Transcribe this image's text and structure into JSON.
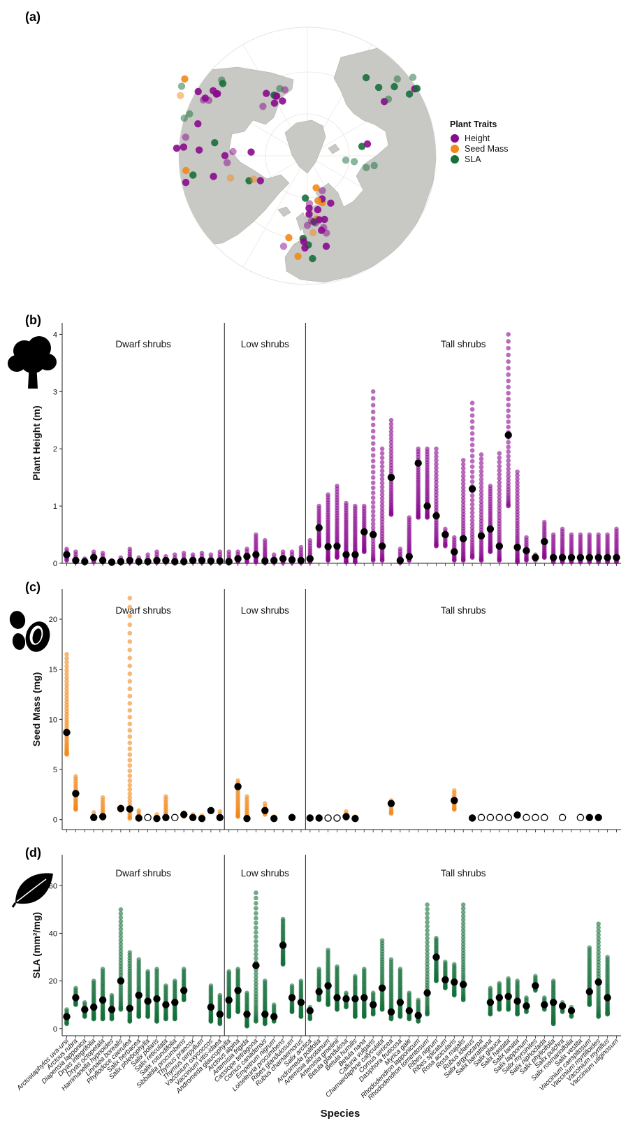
{
  "colors": {
    "height": "#8a0a8e",
    "seed": "#f0891a",
    "sla": "#16703a",
    "land": "#c8c8c4",
    "mean": "#000000"
  },
  "map": {
    "panel_label": "(a)",
    "legend_title": "Plant Traits",
    "legend": [
      "Height",
      "Seed Mass",
      "SLA"
    ]
  },
  "groups": [
    "Dwarf shrubs",
    "Low shrubs",
    "Tall shrubs"
  ],
  "x_title": "Species",
  "species": [
    "Arctostaphylos uva-ursi",
    "Arctous rubra",
    "Diapensia lapponica",
    "Dryas integrifolia",
    "Dryas octopetala",
    "Harrimanella hypnoides",
    "Linnaea borealis",
    "Phyllodoce caerulea",
    "Salix herbacea",
    "Salix phlebophylla",
    "Salix polaris",
    "Salix reticulata",
    "Salix rotundifolia",
    "Sibbaldia procumbens",
    "Thymus praecox",
    "Thymus serpyllum",
    "Vaccinium oxycoccos",
    "Vaccinium vitis-idaea",
    "Andromeda glaucophylla",
    "Arctous alpina",
    "Artemisia frigida",
    "Cassiope tetragona",
    "Cornus canadensis",
    "Empetrum nigrum",
    "Loiseleuria procumbens",
    "Ribes glandulosum",
    "Rubus chamaemorus",
    "Salix arctica",
    "Andromeda polifolia",
    "Artemisia abrotanum",
    "Artemisia gmelinii",
    "Betula glandulosa",
    "Betula humilis",
    "Betula nana",
    "Calluna vulgaris",
    "Chamaedaphne calyculata",
    "Cornus sericea",
    "Dasiphora fruticosa",
    "Myrica gale",
    "Rhododendron lapponicum",
    "Rhododendron tomentosum",
    "Ribes nigrum",
    "Ribes spicatum",
    "Rosa acicularis",
    "Rosa majalis",
    "Rubus idaeus",
    "Salix argyrocarpa",
    "Salix barrattiana",
    "Salix glauca",
    "Salix hastata",
    "Salix lanata",
    "Salix lapponum",
    "Salix myrsinites",
    "Salix niphoclada",
    "Salix phylicifolia",
    "Salix pulchra",
    "Salix rosmarinifolia",
    "Salix vestita",
    "Vaccinium caespitosum",
    "Vaccinium myrtilloides",
    "Vaccinium myrtillus",
    "Vaccinium uliginosum"
  ],
  "chart_data": [
    {
      "panel": "(b)",
      "type": "scatter",
      "ylabel": "Plant Height (m)",
      "ylim": [
        0,
        4.2
      ],
      "yticks": [
        0,
        1,
        2,
        3,
        4
      ],
      "groups": [
        "Dwarf shrubs",
        "Low shrubs",
        "Tall shrubs"
      ],
      "mean": [
        0.15,
        0.05,
        0.03,
        0.1,
        0.05,
        0.02,
        0.03,
        0.05,
        0.03,
        0.03,
        0.05,
        0.05,
        0.03,
        0.03,
        0.05,
        0.05,
        0.04,
        0.04,
        0.03,
        0.08,
        0.12,
        0.15,
        0.04,
        0.05,
        0.08,
        0.06,
        0.05,
        0.08,
        0.62,
        0.29,
        0.3,
        0.15,
        0.15,
        0.55,
        0.5,
        0.3,
        1.5,
        0.05,
        0.12,
        1.75,
        1.0,
        0.83,
        0.5,
        0.2,
        0.43,
        1.3,
        0.48,
        0.6,
        0.3,
        2.24,
        0.28,
        0.22,
        0.1,
        0.38,
        0.1,
        0.1,
        0.1,
        0.1,
        0.1,
        0.1,
        0.1,
        0.1
      ],
      "max": [
        0.25,
        0.2,
        0.08,
        0.2,
        0.18,
        0.05,
        0.1,
        0.25,
        0.1,
        0.15,
        0.2,
        0.12,
        0.15,
        0.18,
        0.15,
        0.18,
        0.15,
        0.2,
        0.2,
        0.2,
        0.25,
        0.5,
        0.4,
        0.15,
        0.2,
        0.2,
        0.28,
        0.4,
        1.0,
        1.2,
        1.35,
        1.05,
        1.0,
        1.0,
        3.0,
        2.0,
        2.5,
        0.25,
        0.8,
        2.0,
        2.0,
        2.0,
        0.6,
        0.45,
        1.8,
        2.8,
        1.9,
        1.35,
        1.92,
        4.0,
        1.6,
        0.45,
        0.15,
        0.72,
        0.5,
        0.6,
        0.5,
        0.5,
        0.5,
        0.5,
        0.5,
        0.6
      ],
      "min": [
        0.05,
        0.02,
        0.01,
        0.02,
        0.02,
        0.01,
        0.01,
        0.01,
        0.01,
        0.01,
        0.01,
        0.01,
        0.01,
        0.01,
        0.02,
        0.01,
        0.01,
        0.01,
        0.01,
        0.02,
        0.02,
        0.02,
        0.01,
        0.01,
        0.01,
        0.01,
        0.01,
        0.02,
        0.3,
        0.05,
        0.1,
        0.02,
        0.02,
        0.2,
        0.05,
        0.05,
        0.85,
        0.01,
        0.05,
        0.8,
        0.8,
        0.3,
        0.3,
        0.05,
        0.05,
        0.1,
        0.05,
        0.2,
        0.05,
        1.0,
        0.02,
        0.05,
        0.05,
        0.1,
        0.02,
        0.02,
        0.02,
        0.02,
        0.02,
        0.02,
        0.02,
        0.02
      ]
    },
    {
      "panel": "(c)",
      "type": "scatter",
      "ylabel": "Seed Mass (mg)",
      "ylim": [
        -1,
        23
      ],
      "yticks": [
        0,
        5,
        10,
        15,
        20
      ],
      "groups": [
        "Dwarf shrubs",
        "Low shrubs",
        "Tall shrubs"
      ],
      "mean": [
        8.7,
        2.6,
        null,
        0.2,
        0.3,
        null,
        1.1,
        1.05,
        0.15,
        0.2,
        0.1,
        0.2,
        0.2,
        0.5,
        0.2,
        0.1,
        0.9,
        0.2,
        null,
        3.3,
        0.1,
        null,
        0.9,
        0.1,
        null,
        0.2,
        null,
        0.15,
        0.15,
        0.15,
        0.15,
        0.3,
        0.1,
        null,
        null,
        null,
        1.6,
        null,
        null,
        null,
        null,
        null,
        null,
        1.9,
        null,
        0.15,
        0.2,
        0.2,
        0.2,
        0.2,
        0.45,
        0.2,
        0.2,
        0.2,
        null,
        0.2,
        null,
        0.2,
        0.2,
        0.2,
        null,
        null
      ],
      "empty": [
        false,
        false,
        false,
        false,
        false,
        false,
        false,
        false,
        false,
        true,
        false,
        false,
        true,
        false,
        false,
        false,
        false,
        false,
        false,
        false,
        false,
        false,
        false,
        false,
        false,
        false,
        false,
        false,
        false,
        true,
        true,
        false,
        false,
        false,
        false,
        false,
        false,
        false,
        false,
        false,
        false,
        false,
        false,
        false,
        false,
        false,
        true,
        true,
        true,
        true,
        false,
        true,
        true,
        true,
        false,
        true,
        false,
        true,
        false,
        false,
        false,
        false
      ],
      "max": [
        16.5,
        4.3,
        null,
        0.7,
        2.2,
        null,
        1.3,
        22.1,
        0.9,
        null,
        0.5,
        2.3,
        null,
        0.7,
        0.5,
        0.4,
        1.0,
        0.8,
        null,
        3.9,
        2.3,
        null,
        1.6,
        0.3,
        null,
        0.4,
        null,
        0.3,
        0.3,
        null,
        null,
        0.8,
        0.3,
        null,
        null,
        null,
        1.9,
        null,
        null,
        null,
        null,
        null,
        null,
        2.9,
        null,
        0.3,
        null,
        null,
        null,
        null,
        0.6,
        null,
        null,
        null,
        null,
        null,
        null,
        null,
        null,
        0.3,
        null,
        1.3
      ],
      "min": [
        6.5,
        1.0,
        null,
        0.1,
        0.1,
        null,
        0.9,
        0.1,
        0.05,
        null,
        0.05,
        0.05,
        null,
        0.3,
        0.1,
        0.05,
        0.8,
        0.05,
        null,
        0.3,
        0.05,
        null,
        0.5,
        0.05,
        null,
        0.1,
        null,
        0.05,
        0.05,
        null,
        null,
        0.1,
        0.05,
        null,
        null,
        null,
        0.6,
        null,
        null,
        null,
        null,
        null,
        null,
        1.0,
        null,
        0.05,
        null,
        null,
        null,
        null,
        0.3,
        null,
        null,
        null,
        null,
        null,
        null,
        null,
        null,
        0.1,
        null,
        0.1
      ]
    },
    {
      "panel": "(d)",
      "type": "scatter",
      "ylabel": "SLA (mm²/mg)",
      "ylim": [
        -3,
        73
      ],
      "yticks": [
        0,
        20,
        40,
        60
      ],
      "groups": [
        "Dwarf shrubs",
        "Low shrubs",
        "Tall shrubs"
      ],
      "mean": [
        5,
        13,
        8,
        9,
        12,
        8,
        20,
        8.5,
        14,
        11.5,
        12.5,
        10,
        11,
        16,
        null,
        null,
        9,
        6,
        12,
        16,
        6,
        26.5,
        6,
        5,
        35,
        13,
        11,
        7.5,
        15.5,
        18,
        13,
        12.5,
        12.5,
        13,
        10,
        17,
        7,
        11,
        7.5,
        5.5,
        15,
        30,
        20.5,
        19.5,
        18.5,
        null,
        null,
        11,
        13,
        13.5,
        11.5,
        9.5,
        18,
        10,
        11,
        9.5,
        7.5,
        null,
        15.5,
        19.5,
        13,
        null
      ],
      "max": [
        8,
        17,
        11,
        20,
        25,
        14,
        50,
        32,
        29,
        24,
        25,
        18,
        20,
        25,
        null,
        null,
        18,
        14,
        24,
        25,
        15,
        57,
        20,
        10,
        46,
        18,
        20,
        9,
        25,
        33,
        26,
        15,
        22,
        25,
        15,
        37,
        29,
        25,
        15,
        12,
        52,
        38,
        28,
        27,
        52,
        null,
        null,
        17,
        19,
        21,
        20,
        13,
        22,
        13,
        20,
        11,
        9,
        null,
        34,
        44,
        30,
        null
      ],
      "min": [
        2,
        10,
        5,
        4,
        4,
        4,
        8,
        3,
        5,
        5,
        3,
        4,
        4,
        12,
        null,
        null,
        3,
        2,
        5,
        7,
        1,
        3,
        2,
        3,
        27,
        7,
        5,
        4,
        12,
        10,
        8,
        9,
        5,
        5,
        6,
        8,
        4,
        5,
        4,
        3,
        6,
        20,
        17,
        14,
        12,
        null,
        null,
        6,
        8,
        8,
        6,
        7,
        16,
        8,
        2,
        7,
        5,
        null,
        10,
        5,
        6,
        null
      ]
    }
  ]
}
